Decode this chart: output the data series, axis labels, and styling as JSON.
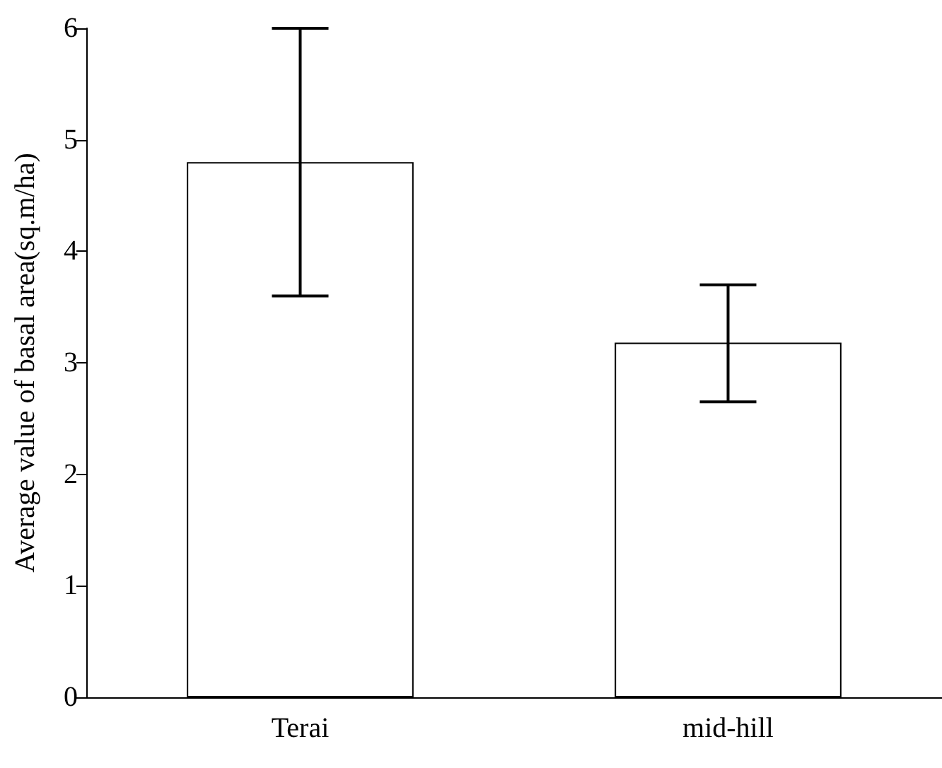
{
  "chart_data": {
    "type": "bar",
    "ylabel": "Average value of basal area(sq.m/ha)",
    "categories": [
      "Terai",
      "mid-hill"
    ],
    "values": [
      4.8,
      3.18
    ],
    "errors": [
      [
        3.6,
        6.0
      ],
      [
        2.65,
        3.7
      ]
    ],
    "color": "#ffffff",
    "ylim": [
      0,
      6
    ],
    "yticks": [
      0,
      1,
      2,
      3,
      4,
      5,
      6
    ],
    "grid": false
  }
}
